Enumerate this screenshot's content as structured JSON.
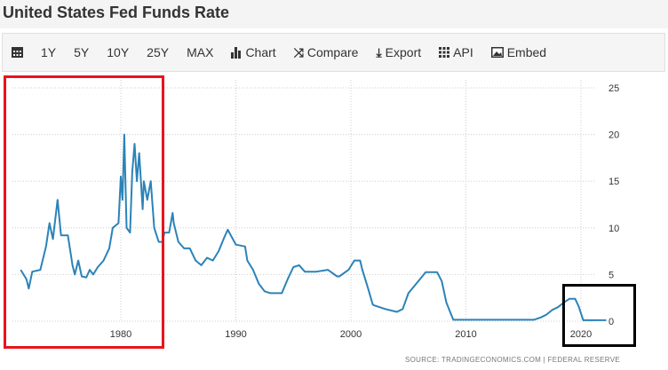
{
  "title": "United States Fed Funds Rate",
  "toolbar": {
    "items": [
      {
        "icon": "calendar-icon",
        "label": ""
      },
      {
        "label": "1Y"
      },
      {
        "label": "5Y"
      },
      {
        "label": "10Y"
      },
      {
        "label": "25Y"
      },
      {
        "label": "MAX"
      },
      {
        "icon": "bar-chart-icon",
        "label": "Chart"
      },
      {
        "icon": "shuffle-icon",
        "label": "Compare"
      },
      {
        "icon": "download-icon",
        "label": "Export"
      },
      {
        "icon": "grid-icon",
        "label": "API"
      },
      {
        "icon": "image-icon",
        "label": "Embed"
      }
    ]
  },
  "source": "SOURCE: TRADINGECONOMICS.COM | FEDERAL RESERVE",
  "colors": {
    "line": "#2b83b8",
    "red_box": "#e8141c",
    "black_box": "#000000"
  },
  "chart_data": {
    "type": "line",
    "title": "United States Fed Funds Rate",
    "xlabel": "",
    "ylabel": "",
    "xlim": [
      1971.3,
      2022.2
    ],
    "ylim": [
      0,
      25
    ],
    "xticks": [
      "1980",
      "1990",
      "2000",
      "2010",
      "2020"
    ],
    "yticks": [
      "0",
      "5",
      "10",
      "15",
      "20",
      "25"
    ],
    "grid": true,
    "series": [
      {
        "name": "Fed Funds Rate",
        "points": [
          [
            1971.3,
            5.5
          ],
          [
            1971.8,
            4.5
          ],
          [
            1972,
            3.5
          ],
          [
            1972.3,
            5.3
          ],
          [
            1973,
            5.5
          ],
          [
            1973.5,
            8
          ],
          [
            1973.8,
            10.5
          ],
          [
            1974.1,
            8.8
          ],
          [
            1974.5,
            13
          ],
          [
            1974.8,
            9.2
          ],
          [
            1975.4,
            9.2
          ],
          [
            1975.8,
            6
          ],
          [
            1976,
            5
          ],
          [
            1976.3,
            6.5
          ],
          [
            1976.6,
            4.8
          ],
          [
            1977,
            4.7
          ],
          [
            1977.3,
            5.5
          ],
          [
            1977.6,
            5
          ],
          [
            1978,
            5.8
          ],
          [
            1978.5,
            6.5
          ],
          [
            1979,
            7.8
          ],
          [
            1979.3,
            10
          ],
          [
            1979.8,
            10.5
          ],
          [
            1980,
            15.5
          ],
          [
            1980.15,
            13
          ],
          [
            1980.3,
            20
          ],
          [
            1980.5,
            10
          ],
          [
            1980.8,
            9.5
          ],
          [
            1981,
            16
          ],
          [
            1981.2,
            19
          ],
          [
            1981.4,
            15
          ],
          [
            1981.6,
            18
          ],
          [
            1981.9,
            12
          ],
          [
            1982,
            15
          ],
          [
            1982.3,
            13
          ],
          [
            1982.6,
            15
          ],
          [
            1982.9,
            10
          ],
          [
            1983.3,
            8.5
          ],
          [
            1983.6,
            8.5
          ],
          [
            1983.8,
            9.5
          ],
          [
            1984.2,
            9.5
          ],
          [
            1984.5,
            11.6
          ],
          [
            1984.6,
            10.5
          ],
          [
            1985,
            8.5
          ],
          [
            1985.5,
            7.8
          ],
          [
            1986,
            7.8
          ],
          [
            1986.5,
            6.5
          ],
          [
            1987,
            6
          ],
          [
            1987.5,
            6.8
          ],
          [
            1988,
            6.5
          ],
          [
            1988.5,
            7.5
          ],
          [
            1989,
            9
          ],
          [
            1989.3,
            9.8
          ],
          [
            1990,
            8.2
          ],
          [
            1990.8,
            8
          ],
          [
            1991,
            6.5
          ],
          [
            1991.5,
            5.5
          ],
          [
            1992,
            4
          ],
          [
            1992.5,
            3.2
          ],
          [
            1993,
            3
          ],
          [
            1994,
            3
          ],
          [
            1994.5,
            4.5
          ],
          [
            1995,
            5.8
          ],
          [
            1995.5,
            6
          ],
          [
            1996,
            5.3
          ],
          [
            1997,
            5.3
          ],
          [
            1998,
            5.5
          ],
          [
            1998.8,
            4.8
          ],
          [
            1999,
            4.8
          ],
          [
            1999.8,
            5.5
          ],
          [
            2000.3,
            6.5
          ],
          [
            2000.8,
            6.5
          ],
          [
            2001,
            5.5
          ],
          [
            2001.5,
            3.5
          ],
          [
            2001.9,
            1.8
          ],
          [
            2002,
            1.7
          ],
          [
            2003,
            1.3
          ],
          [
            2004,
            1
          ],
          [
            2004.5,
            1.3
          ],
          [
            2005,
            3
          ],
          [
            2006,
            4.5
          ],
          [
            2006.5,
            5.25
          ],
          [
            2007.5,
            5.25
          ],
          [
            2007.9,
            4.3
          ],
          [
            2008.3,
            2
          ],
          [
            2008.9,
            0.15
          ],
          [
            2015.9,
            0.15
          ],
          [
            2016.5,
            0.4
          ],
          [
            2017,
            0.7
          ],
          [
            2017.5,
            1.2
          ],
          [
            2018,
            1.5
          ],
          [
            2018.5,
            2
          ],
          [
            2019,
            2.4
          ],
          [
            2019.5,
            2.4
          ],
          [
            2019.8,
            1.6
          ],
          [
            2020.2,
            0.1
          ],
          [
            2022.2,
            0.1
          ]
        ]
      }
    ],
    "annotations": [
      {
        "type": "highlight-box",
        "color": "red",
        "range_years": [
          1970.5,
          1984.5
        ]
      },
      {
        "type": "highlight-box",
        "color": "black",
        "range_years": [
          2019.8,
          2026
        ]
      }
    ]
  }
}
